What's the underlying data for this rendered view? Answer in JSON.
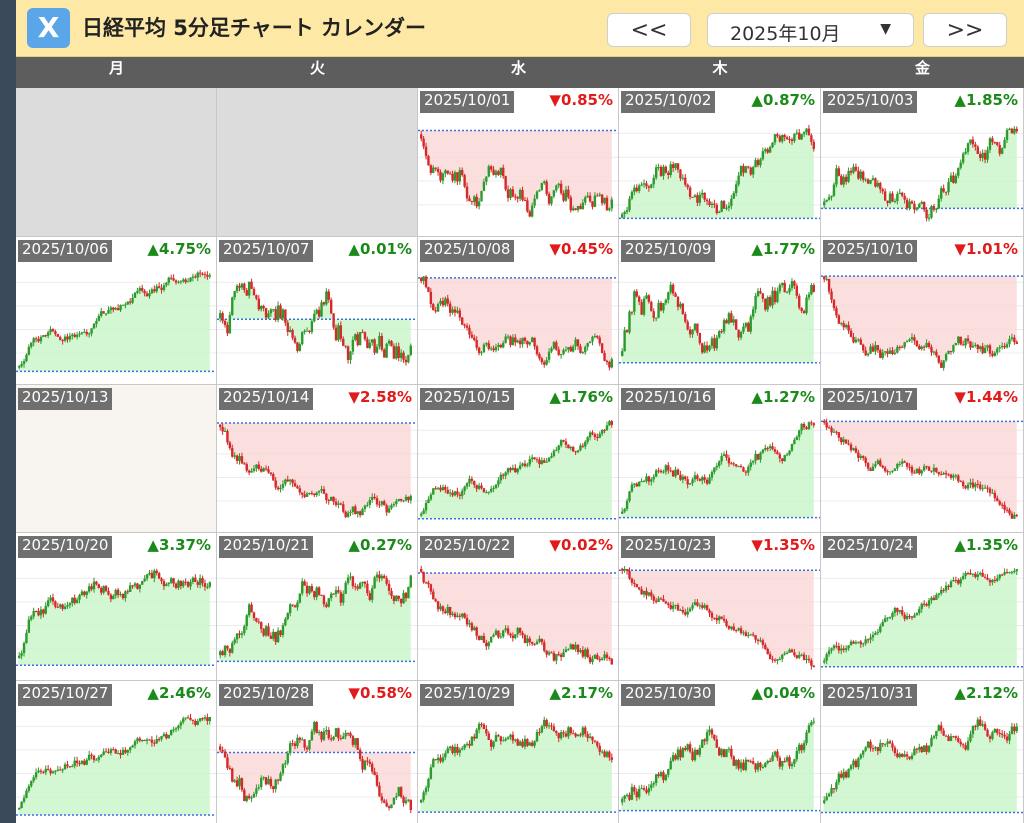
{
  "app": {
    "title": "日経平均 5分足チャート カレンダー",
    "logo": "X"
  },
  "nav": {
    "prev_label": "<<",
    "next_label": ">>",
    "month_label": "2025年10月",
    "month_caret": "▼"
  },
  "weekdays": [
    "月",
    "火",
    "水",
    "木",
    "金"
  ],
  "colors": {
    "up": "#1b8a1b",
    "down": "#e01b1b",
    "up_fill": "#c8f5c8",
    "down_fill": "#fad7d7",
    "candle_up": "#2e9a2e",
    "candle_down": "#d42a2a",
    "prev_close_line": "#3a70e0"
  },
  "days": [
    {
      "date": "",
      "kind": "empty"
    },
    {
      "date": "",
      "kind": "empty"
    },
    {
      "date": "2025/10/01",
      "change": "▼0.85%",
      "dir": "down"
    },
    {
      "date": "2025/10/02",
      "change": "▲0.87%",
      "dir": "up"
    },
    {
      "date": "2025/10/03",
      "change": "▲1.85%",
      "dir": "up"
    },
    {
      "date": "2025/10/06",
      "change": "▲4.75%",
      "dir": "up"
    },
    {
      "date": "2025/10/07",
      "change": "▲0.01%",
      "dir": "up"
    },
    {
      "date": "2025/10/08",
      "change": "▼0.45%",
      "dir": "down"
    },
    {
      "date": "2025/10/09",
      "change": "▲1.77%",
      "dir": "up"
    },
    {
      "date": "2025/10/10",
      "change": "▼1.01%",
      "dir": "down"
    },
    {
      "date": "2025/10/13",
      "change": "",
      "kind": "holiday"
    },
    {
      "date": "2025/10/14",
      "change": "▼2.58%",
      "dir": "down"
    },
    {
      "date": "2025/10/15",
      "change": "▲1.76%",
      "dir": "up"
    },
    {
      "date": "2025/10/16",
      "change": "▲1.27%",
      "dir": "up"
    },
    {
      "date": "2025/10/17",
      "change": "▼1.44%",
      "dir": "down"
    },
    {
      "date": "2025/10/20",
      "change": "▲3.37%",
      "dir": "up"
    },
    {
      "date": "2025/10/21",
      "change": "▲0.27%",
      "dir": "up"
    },
    {
      "date": "2025/10/22",
      "change": "▼0.02%",
      "dir": "down"
    },
    {
      "date": "2025/10/23",
      "change": "▼1.35%",
      "dir": "down"
    },
    {
      "date": "2025/10/24",
      "change": "▲1.35%",
      "dir": "up"
    },
    {
      "date": "2025/10/27",
      "change": "▲2.46%",
      "dir": "up"
    },
    {
      "date": "2025/10/28",
      "change": "▼0.58%",
      "dir": "down"
    },
    {
      "date": "2025/10/29",
      "change": "▲2.17%",
      "dir": "up"
    },
    {
      "date": "2025/10/30",
      "change": "▲0.04%",
      "dir": "up"
    },
    {
      "date": "2025/10/31",
      "change": "▲2.12%",
      "dir": "up"
    }
  ]
}
